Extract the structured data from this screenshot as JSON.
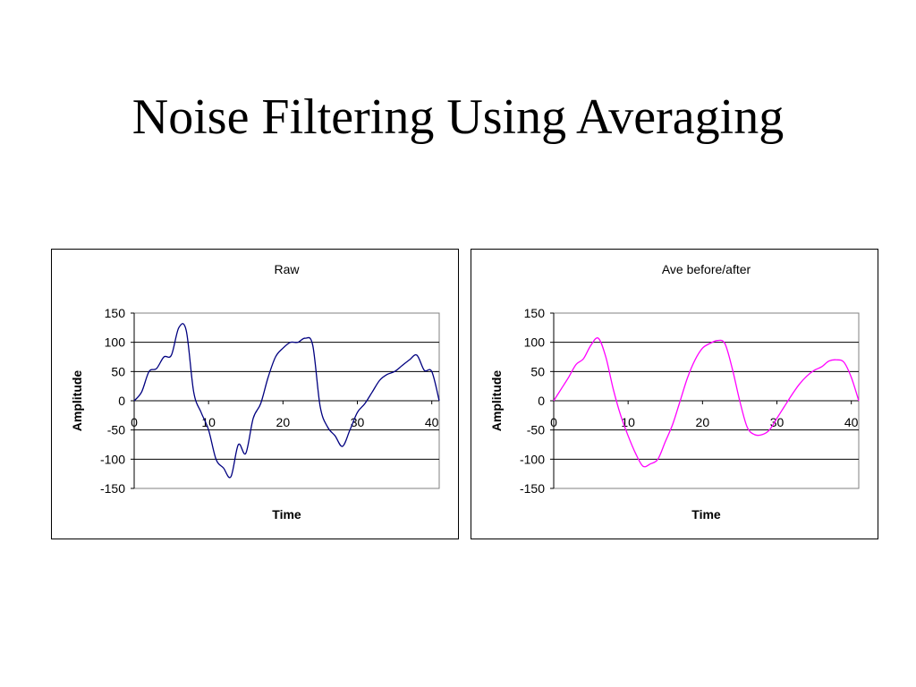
{
  "slide": {
    "title": "Noise Filtering Using Averaging"
  },
  "chart_data": [
    {
      "type": "line",
      "title": "Raw",
      "xlabel": "Time",
      "ylabel": "Amplitude",
      "xlim": [
        0,
        41
      ],
      "ylim": [
        -150,
        150
      ],
      "xticks": [
        0,
        10,
        20,
        30,
        40
      ],
      "yticks": [
        150,
        100,
        50,
        0,
        -50,
        -100,
        -150
      ],
      "grid": "horizontal",
      "legend": "none",
      "series": [
        {
          "color": "#000080",
          "x": [
            0,
            1,
            2,
            3,
            4,
            5,
            6,
            7,
            8,
            9,
            10,
            11,
            12,
            13,
            14,
            15,
            16,
            17,
            18,
            19,
            20,
            21,
            22,
            23,
            24,
            25,
            26,
            27,
            28,
            29,
            30,
            31,
            32,
            33,
            34,
            35,
            36,
            37,
            38,
            39,
            40,
            41
          ],
          "y": [
            0,
            15,
            50,
            55,
            75,
            78,
            125,
            120,
            15,
            -20,
            -50,
            -100,
            -115,
            -130,
            -75,
            -90,
            -30,
            -5,
            40,
            75,
            90,
            100,
            100,
            107,
            95,
            -10,
            -45,
            -60,
            -78,
            -50,
            -20,
            -5,
            15,
            35,
            45,
            50,
            60,
            70,
            78,
            52,
            50,
            0
          ]
        }
      ]
    },
    {
      "type": "line",
      "title": "Ave before/after",
      "xlabel": "Time",
      "ylabel": "Amplitude",
      "xlim": [
        0,
        41
      ],
      "ylim": [
        -150,
        150
      ],
      "xticks": [
        0,
        10,
        20,
        30,
        40
      ],
      "yticks": [
        150,
        100,
        50,
        0,
        -50,
        -100,
        -150
      ],
      "grid": "horizontal",
      "legend": "none",
      "series": [
        {
          "color": "#ff00ff",
          "x": [
            0,
            1,
            2,
            3,
            4,
            5,
            6,
            7,
            8,
            9,
            10,
            11,
            12,
            13,
            14,
            15,
            16,
            17,
            18,
            19,
            20,
            21,
            22,
            23,
            24,
            25,
            26,
            27,
            28,
            29,
            30,
            31,
            32,
            33,
            34,
            35,
            36,
            37,
            38,
            39,
            40,
            41
          ],
          "y": [
            0,
            20,
            40,
            62,
            72,
            95,
            107,
            75,
            20,
            -25,
            -60,
            -90,
            -112,
            -108,
            -100,
            -70,
            -40,
            0,
            40,
            70,
            90,
            98,
            103,
            98,
            55,
            0,
            -45,
            -58,
            -58,
            -50,
            -30,
            -10,
            10,
            28,
            42,
            52,
            58,
            68,
            70,
            66,
            40,
            0
          ]
        }
      ]
    }
  ]
}
